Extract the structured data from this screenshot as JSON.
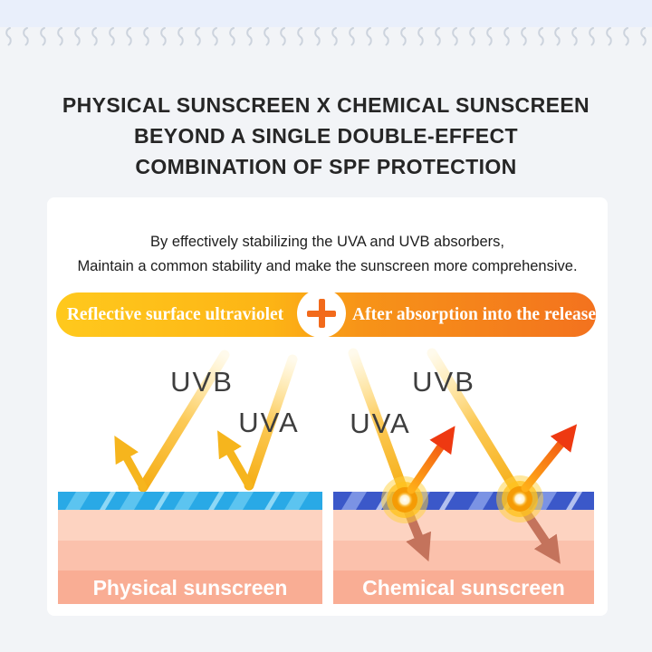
{
  "page": {
    "background_color": "#f2f4f7",
    "top_strip_color": "#e9effb",
    "title_lines": [
      "PHYSICAL SUNSCREEN X CHEMICAL SUNSCREEN",
      "BEYOND A SINGLE DOUBLE-EFFECT",
      "COMBINATION OF SPF PROTECTION"
    ]
  },
  "card": {
    "subtitle_lines": [
      "By effectively stabilizing the UVA and UVB absorbers,",
      "Maintain a common stability and make the sunscreen more comprehensive."
    ],
    "banner": {
      "left_label": "Reflective surface ultraviolet",
      "right_label": "After absorption into the release",
      "gradient_left_color": "#ffc91d",
      "gradient_right_color": "#f3721e",
      "plus_icon_color": "#f26a1b"
    },
    "diagram": {
      "ray_color": "#f5ad14",
      "reflect_arrow_color": "#f6b51d",
      "release_arrow_color": "#ee3911",
      "penetrate_arrow_color": "#c4735c",
      "skin_layer_colors": [
        "#fdd3c1",
        "#fbc1ac",
        "#f9ad94"
      ],
      "left": {
        "uvb_label": "UVB",
        "uva_label": "UVA",
        "surface_label": "Physical sunscreen",
        "surface_color": "#29a9e6"
      },
      "right": {
        "uva_label": "UVA",
        "uvb_label": "UVB",
        "surface_label": "Chemical sunscreen",
        "surface_color": "#3b58c9"
      }
    }
  }
}
